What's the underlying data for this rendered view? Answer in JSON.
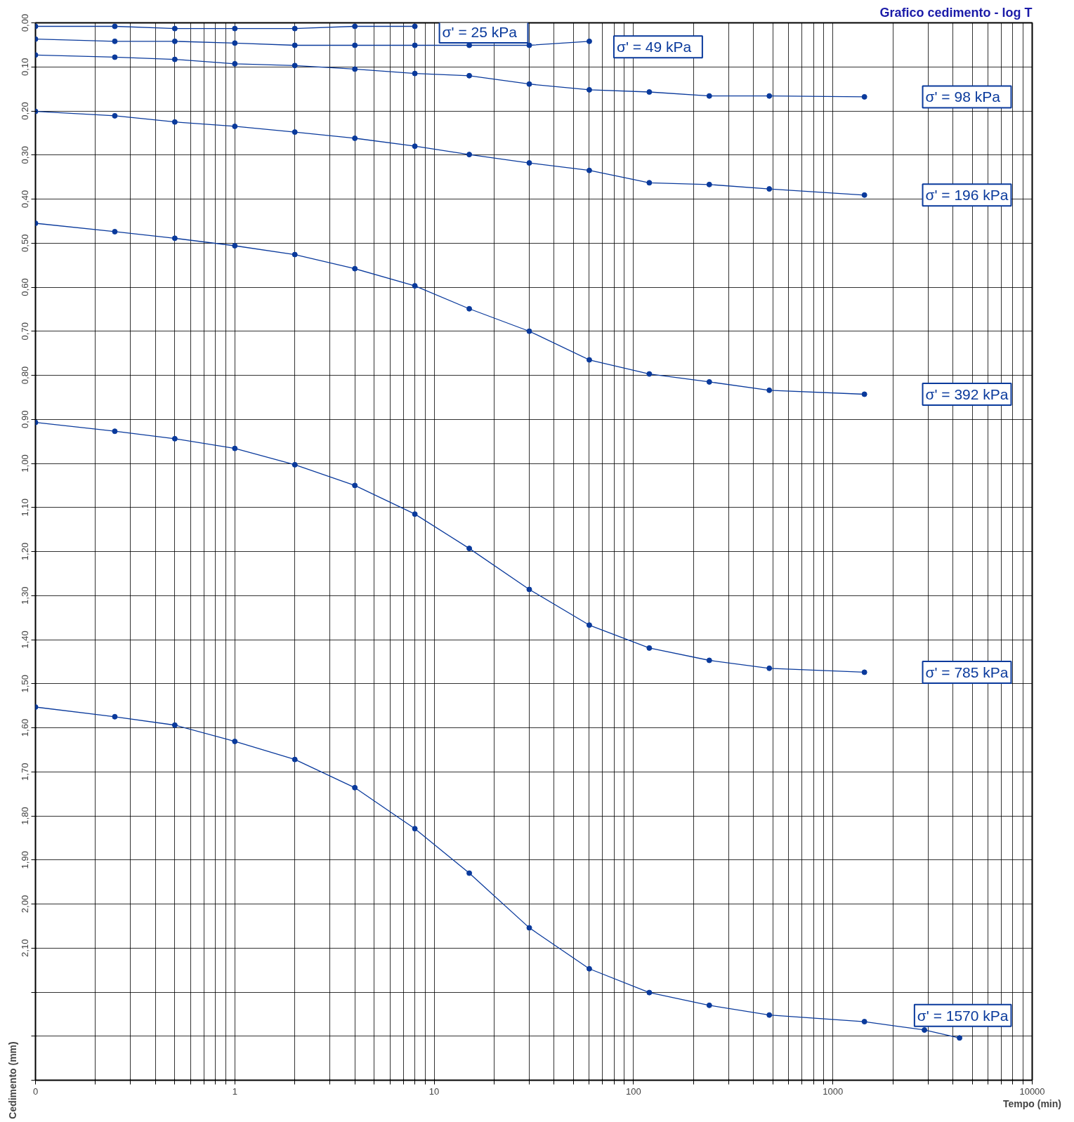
{
  "chart_data": {
    "type": "line",
    "title": "Grafico cedimento - log T",
    "xlabel": "Tempo (min)",
    "ylabel": "Cedimento (mm)",
    "log": "x",
    "grid": true,
    "legend": false,
    "marker": "circle",
    "line_style": "solid",
    "xlim": [
      0.1,
      10000
    ],
    "ylim": [
      2.4,
      0
    ],
    "xticks": [
      {
        "value": 0.1,
        "label": "0"
      },
      {
        "value": 0.2,
        "label": null
      },
      {
        "value": 0.3,
        "label": null
      },
      {
        "value": 0.4,
        "label": null
      },
      {
        "value": 0.5,
        "label": null
      },
      {
        "value": 0.6,
        "label": null
      },
      {
        "value": 0.7,
        "label": null
      },
      {
        "value": 0.8,
        "label": null
      },
      {
        "value": 0.9,
        "label": null
      },
      1,
      {
        "value": 2,
        "label": null
      },
      {
        "value": 3,
        "label": null
      },
      {
        "value": 4,
        "label": null
      },
      {
        "value": 5,
        "label": null
      },
      {
        "value": 6,
        "label": null
      },
      {
        "value": 7,
        "label": null
      },
      {
        "value": 8,
        "label": null
      },
      {
        "value": 9,
        "label": null
      },
      10,
      {
        "value": 20,
        "label": null
      },
      {
        "value": 30,
        "label": null
      },
      {
        "value": 40,
        "label": null
      },
      {
        "value": 50,
        "label": null
      },
      {
        "value": 60,
        "label": null
      },
      {
        "value": 70,
        "label": null
      },
      {
        "value": 80,
        "label": null
      },
      {
        "value": 90,
        "label": null
      },
      100,
      {
        "value": 200,
        "label": null
      },
      {
        "value": 300,
        "label": null
      },
      {
        "value": 400,
        "label": null
      },
      {
        "value": 500,
        "label": null
      },
      {
        "value": 600,
        "label": null
      },
      {
        "value": 700,
        "label": null
      },
      {
        "value": 800,
        "label": null
      },
      {
        "value": 900,
        "label": null
      },
      1000,
      {
        "value": 2000,
        "label": null
      },
      {
        "value": 3000,
        "label": null
      },
      {
        "value": 4000,
        "label": null
      },
      {
        "value": 5000,
        "label": null
      },
      {
        "value": 6000,
        "label": null
      },
      {
        "value": 7000,
        "label": null
      },
      {
        "value": 8000,
        "label": null
      },
      {
        "value": 9000,
        "label": null
      },
      10000
    ],
    "yticks": [
      {
        "value": 0,
        "label": "0,00"
      },
      {
        "value": 0.1,
        "label": "0,10"
      },
      {
        "value": 0.2,
        "label": "0,20"
      },
      {
        "value": 0.3,
        "label": "0,30"
      },
      {
        "value": 0.4,
        "label": "0,40"
      },
      {
        "value": 0.5,
        "label": "0,50"
      },
      {
        "value": 0.6,
        "label": "0,60"
      },
      {
        "value": 0.7,
        "label": "0,70"
      },
      {
        "value": 0.8,
        "label": "0,80"
      },
      {
        "value": 0.9,
        "label": "0,90"
      },
      {
        "value": 1.0,
        "label": "1,00"
      },
      {
        "value": 1.1,
        "label": "1,10"
      },
      {
        "value": 1.2,
        "label": "1,20"
      },
      {
        "value": 1.3,
        "label": "1,30"
      },
      {
        "value": 1.4,
        "label": "1,40"
      },
      {
        "value": 1.5,
        "label": "1,50"
      },
      {
        "value": 1.6,
        "label": "1,60"
      },
      {
        "value": 1.7,
        "label": "1,70"
      },
      {
        "value": 1.8,
        "label": "1,80"
      },
      {
        "value": 1.9,
        "label": "1,90"
      },
      {
        "value": 2.0,
        "label": "2,00"
      },
      {
        "value": 2.1,
        "label": "2,10"
      },
      {
        "value": 2.2,
        "label": null
      },
      {
        "value": 2.3,
        "label": null
      },
      {
        "value": 2.4,
        "label": null
      }
    ],
    "series": [
      {
        "name": "σ' =  25  kPa",
        "color": "#0a3a9c",
        "x": [
          0.1,
          0.25,
          0.5,
          1,
          2,
          4,
          8
        ],
        "values": [
          0.008,
          0.008,
          0.013,
          0.013,
          0.013,
          0.008,
          0.008
        ]
      },
      {
        "name": "σ' =  49  kPa",
        "color": "#0a3a9c",
        "x": [
          0.1,
          0.25,
          0.5,
          1,
          2,
          4,
          8,
          15,
          30,
          60
        ],
        "values": [
          0.037,
          0.042,
          0.042,
          0.046,
          0.051,
          0.051,
          0.051,
          0.051,
          0.051,
          0.042
        ]
      },
      {
        "name": "σ' =  98  kPa",
        "color": "#0a3a9c",
        "x": [
          0.1,
          0.25,
          0.5,
          1,
          2,
          4,
          8,
          15,
          30,
          60,
          120,
          240,
          480,
          1440
        ],
        "values": [
          0.073,
          0.078,
          0.083,
          0.093,
          0.097,
          0.105,
          0.115,
          0.12,
          0.139,
          0.152,
          0.157,
          0.166,
          0.166,
          0.168
        ]
      },
      {
        "name": "σ' = 196 kPa",
        "color": "#0a3a9c",
        "x": [
          0.1,
          0.25,
          0.5,
          1,
          2,
          4,
          8,
          15,
          30,
          60,
          120,
          240,
          480,
          1440
        ],
        "values": [
          0.201,
          0.211,
          0.225,
          0.235,
          0.248,
          0.262,
          0.28,
          0.299,
          0.318,
          0.335,
          0.363,
          0.367,
          0.377,
          0.391
        ]
      },
      {
        "name": "σ' = 392 kPa",
        "color": "#0a3a9c",
        "x": [
          0.1,
          0.25,
          0.5,
          1,
          2,
          4,
          8,
          15,
          30,
          60,
          120,
          240,
          480,
          1440
        ],
        "values": [
          0.455,
          0.474,
          0.489,
          0.506,
          0.526,
          0.558,
          0.597,
          0.649,
          0.7,
          0.765,
          0.797,
          0.815,
          0.834,
          0.843
        ]
      },
      {
        "name": "σ' = 785 kPa",
        "color": "#0a3a9c",
        "x": [
          0.1,
          0.25,
          0.5,
          1,
          2,
          4,
          8,
          15,
          30,
          60,
          120,
          240,
          480,
          1440
        ],
        "values": [
          0.907,
          0.927,
          0.944,
          0.966,
          1.003,
          1.05,
          1.115,
          1.193,
          1.286,
          1.367,
          1.419,
          1.447,
          1.465,
          1.474
        ]
      },
      {
        "name": "σ' = 1570 kPa",
        "color": "#0a3a9c",
        "x": [
          0.1,
          0.25,
          0.5,
          1,
          2,
          4,
          8,
          15,
          30,
          60,
          120,
          240,
          480,
          1440,
          2880,
          4320
        ],
        "values": [
          1.553,
          1.575,
          1.594,
          1.631,
          1.672,
          1.736,
          1.829,
          1.93,
          2.054,
          2.147,
          2.201,
          2.23,
          2.252,
          2.267,
          2.286,
          2.304
        ]
      }
    ]
  }
}
